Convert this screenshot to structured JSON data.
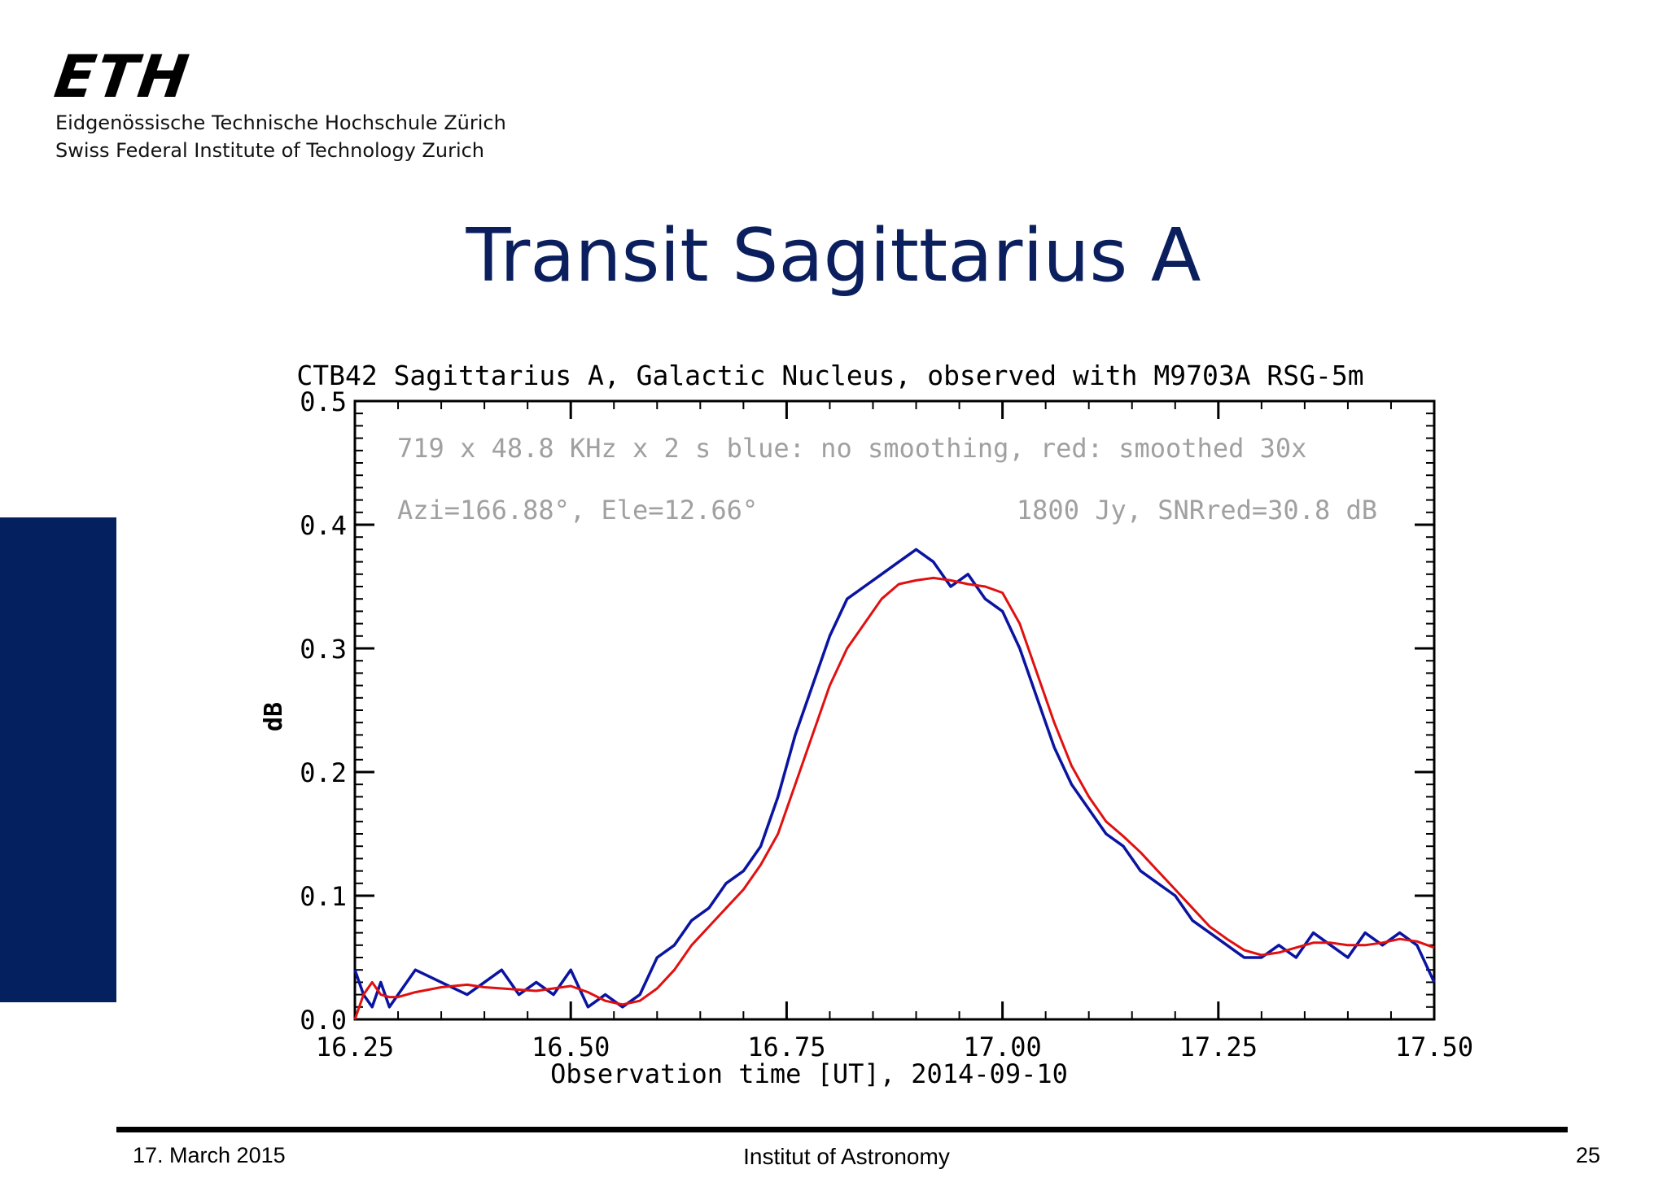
{
  "header": {
    "logo_text": "ETH",
    "institution_de": "Eidgenössische Technische Hochschule Zürich",
    "institution_en": "Swiss Federal Institute of Technology Zurich"
  },
  "slide_title": "Transit Sagittarius A",
  "footer": {
    "date": "17. March 2015",
    "institute": "Institut of Astronomy",
    "page_number": "25"
  },
  "colors": {
    "title": "#0b1f5e",
    "side_bar": "#05205e",
    "raw_series": "#0a14a0",
    "smoothed_series": "#e01010",
    "annotation": "#a0a0a0"
  },
  "chart_data": {
    "type": "line",
    "title": "CTB42 Sagittarius A, Galactic Nucleus, observed with M9703A RSG-5m",
    "xlabel": "Observation time [UT], 2014-09-10",
    "ylabel": "dB",
    "xlim": [
      16.25,
      17.5
    ],
    "ylim": [
      0.0,
      0.5
    ],
    "x_ticks": [
      "16.25",
      "16.50",
      "16.75",
      "17.00",
      "17.25",
      "17.50"
    ],
    "y_ticks": [
      "0.0",
      "0.1",
      "0.2",
      "0.3",
      "0.4",
      "0.5"
    ],
    "annotations": [
      "719 x 48.8 KHz x 2 s blue: no smoothing, red: smoothed 30x",
      "Azi=166.88°, Ele=12.66°",
      "1800 Jy, SNRred=30.8 dB"
    ],
    "grid": false,
    "series": [
      {
        "name": "blue: no smoothing",
        "color": "#0a14a0",
        "x": [
          16.25,
          16.26,
          16.27,
          16.28,
          16.29,
          16.3,
          16.32,
          16.35,
          16.38,
          16.4,
          16.42,
          16.44,
          16.46,
          16.48,
          16.5,
          16.52,
          16.54,
          16.56,
          16.58,
          16.6,
          16.62,
          16.64,
          16.66,
          16.68,
          16.7,
          16.72,
          16.74,
          16.76,
          16.78,
          16.8,
          16.82,
          16.84,
          16.86,
          16.88,
          16.9,
          16.92,
          16.94,
          16.96,
          16.98,
          17.0,
          17.02,
          17.04,
          17.06,
          17.08,
          17.1,
          17.12,
          17.14,
          17.16,
          17.18,
          17.2,
          17.22,
          17.24,
          17.26,
          17.28,
          17.3,
          17.32,
          17.34,
          17.36,
          17.38,
          17.4,
          17.42,
          17.44,
          17.46,
          17.48,
          17.5
        ],
        "y": [
          0.04,
          0.02,
          0.01,
          0.03,
          0.01,
          0.02,
          0.04,
          0.03,
          0.02,
          0.03,
          0.04,
          0.02,
          0.03,
          0.02,
          0.04,
          0.01,
          0.02,
          0.01,
          0.02,
          0.05,
          0.06,
          0.08,
          0.09,
          0.11,
          0.12,
          0.14,
          0.18,
          0.23,
          0.27,
          0.31,
          0.34,
          0.35,
          0.36,
          0.37,
          0.38,
          0.37,
          0.35,
          0.36,
          0.34,
          0.33,
          0.3,
          0.26,
          0.22,
          0.19,
          0.17,
          0.15,
          0.14,
          0.12,
          0.11,
          0.1,
          0.08,
          0.07,
          0.06,
          0.05,
          0.05,
          0.06,
          0.05,
          0.07,
          0.06,
          0.05,
          0.07,
          0.06,
          0.07,
          0.06,
          0.03
        ]
      },
      {
        "name": "red: smoothed 30x",
        "color": "#e01010",
        "x": [
          16.25,
          16.26,
          16.27,
          16.28,
          16.29,
          16.3,
          16.32,
          16.35,
          16.38,
          16.4,
          16.42,
          16.44,
          16.46,
          16.48,
          16.5,
          16.52,
          16.54,
          16.56,
          16.58,
          16.6,
          16.62,
          16.64,
          16.66,
          16.68,
          16.7,
          16.72,
          16.74,
          16.76,
          16.78,
          16.8,
          16.82,
          16.84,
          16.86,
          16.88,
          16.9,
          16.92,
          16.94,
          16.96,
          16.98,
          17.0,
          17.02,
          17.04,
          17.06,
          17.08,
          17.1,
          17.12,
          17.14,
          17.16,
          17.18,
          17.2,
          17.22,
          17.24,
          17.26,
          17.28,
          17.3,
          17.32,
          17.34,
          17.36,
          17.38,
          17.4,
          17.42,
          17.44,
          17.46,
          17.48,
          17.5
        ],
        "y": [
          0.0,
          0.02,
          0.03,
          0.02,
          0.018,
          0.018,
          0.022,
          0.026,
          0.028,
          0.026,
          0.025,
          0.024,
          0.023,
          0.025,
          0.027,
          0.022,
          0.015,
          0.012,
          0.015,
          0.025,
          0.04,
          0.06,
          0.075,
          0.09,
          0.105,
          0.125,
          0.15,
          0.19,
          0.23,
          0.27,
          0.3,
          0.32,
          0.34,
          0.352,
          0.355,
          0.357,
          0.355,
          0.352,
          0.35,
          0.345,
          0.32,
          0.28,
          0.24,
          0.205,
          0.18,
          0.16,
          0.148,
          0.135,
          0.12,
          0.105,
          0.09,
          0.075,
          0.065,
          0.056,
          0.052,
          0.054,
          0.058,
          0.062,
          0.062,
          0.06,
          0.06,
          0.062,
          0.065,
          0.063,
          0.058
        ]
      }
    ]
  }
}
